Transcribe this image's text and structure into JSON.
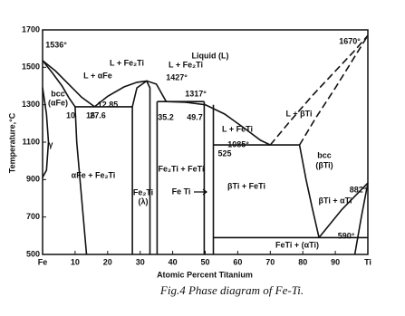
{
  "chart_data": {
    "type": "phase-diagram",
    "xlabel": "Atomic Percent Titanium",
    "ylabel": "Temperature,°C",
    "caption": "Fig.4  Phase diagram of Fe-Ti.",
    "xlim": [
      0,
      100
    ],
    "ylim": [
      500,
      1700
    ],
    "xticks": [
      {
        "value": 0,
        "label": "Fe"
      },
      10,
      20,
      30,
      40,
      50,
      60,
      70,
      80,
      90,
      {
        "value": 100,
        "label": "Ti"
      }
    ],
    "yticks": [
      500,
      700,
      900,
      1100,
      1300,
      1500,
      1700
    ],
    "color": "#111",
    "boundaries": [
      {
        "x": [
          0,
          4,
          8,
          12,
          16
        ],
        "y": [
          1536,
          1480,
          1410,
          1340,
          1289
        ],
        "style": "solid"
      },
      {
        "x": [
          16,
          20,
          25,
          29,
          32,
          35,
          38
        ],
        "y": [
          1289,
          1345,
          1395,
          1420,
          1427,
          1410,
          1317
        ],
        "style": "solid"
      },
      {
        "x": [
          38,
          44,
          50,
          56,
          62,
          67,
          70
        ],
        "y": [
          1317,
          1313,
          1300,
          1250,
          1175,
          1110,
          1085
        ],
        "style": "solid"
      },
      {
        "x": [
          70,
          76,
          83,
          90,
          96,
          100
        ],
        "y": [
          1085,
          1210,
          1350,
          1480,
          1590,
          1670
        ],
        "style": "dashed"
      },
      {
        "x": [
          79,
          84,
          90,
          95,
          100
        ],
        "y": [
          1085,
          1230,
          1390,
          1530,
          1670
        ],
        "style": "dashed"
      },
      {
        "x": [
          10,
          27.6
        ],
        "y": [
          1289,
          1289
        ],
        "style": "solid"
      },
      {
        "x": [
          35.2,
          49.7
        ],
        "y": [
          1317,
          1317
        ],
        "style": "solid"
      },
      {
        "x": [
          52.5,
          79
        ],
        "y": [
          1085,
          1085
        ],
        "style": "solid"
      },
      {
        "x": [
          52.5,
          100
        ],
        "y": [
          590,
          590
        ],
        "style": "solid"
      },
      {
        "x": [
          0,
          3,
          6,
          8,
          10
        ],
        "y": [
          1536,
          1470,
          1400,
          1340,
          1289
        ],
        "style": "solid"
      },
      {
        "x": [
          10,
          10.5,
          11.5,
          12.5,
          13.5
        ],
        "y": [
          1289,
          1100,
          900,
          700,
          500
        ],
        "style": "solid"
      },
      {
        "x": [
          0,
          1.2,
          1.8,
          1.2,
          0
        ],
        "y": [
          1392,
          1250,
          1100,
          950,
          912
        ],
        "style": "solid"
      },
      {
        "x": [
          27.6,
          27.6,
          29,
          32,
          33,
          33
        ],
        "y": [
          500,
          1289,
          1390,
          1427,
          1390,
          500
        ],
        "style": "solid"
      },
      {
        "x": [
          35.2,
          35.2
        ],
        "y": [
          1317,
          500
        ],
        "style": "solid"
      },
      {
        "x": [
          49.7,
          49.7
        ],
        "y": [
          1317,
          500
        ],
        "style": "solid"
      },
      {
        "x": [
          52.5,
          52.5
        ],
        "y": [
          1300,
          500
        ],
        "style": "solid"
      },
      {
        "x": [
          79,
          81,
          83,
          85
        ],
        "y": [
          1085,
          900,
          740,
          590
        ],
        "style": "solid"
      },
      {
        "x": [
          85,
          92,
          100
        ],
        "y": [
          590,
          740,
          882
        ],
        "style": "solid"
      },
      {
        "x": [
          96,
          98,
          100
        ],
        "y": [
          500,
          700,
          882
        ],
        "style": "solid"
      }
    ],
    "annotations": [
      "Liquid (L)",
      "1536°",
      "L + αFe",
      "L + Fe₂Ti",
      "1427°",
      "L + Fe₂Ti",
      "1317°",
      "12.85",
      "35.2",
      "49.7",
      "bcc",
      "(αFe)",
      "10",
      "16",
      "27.6",
      "γ",
      "L + FeTi",
      "1085°",
      "525",
      "L + βTi",
      "bcc",
      "(βTi)",
      "1670°",
      "882°",
      "αFe + Fe₂Ti",
      "Fe₂Ti",
      "(λ)",
      "Fe₂Ti + FeTi",
      "Fe Ti",
      "βTi + FeTi",
      "βTi + αTi",
      "590°",
      "FeTi + (αTi)"
    ]
  }
}
